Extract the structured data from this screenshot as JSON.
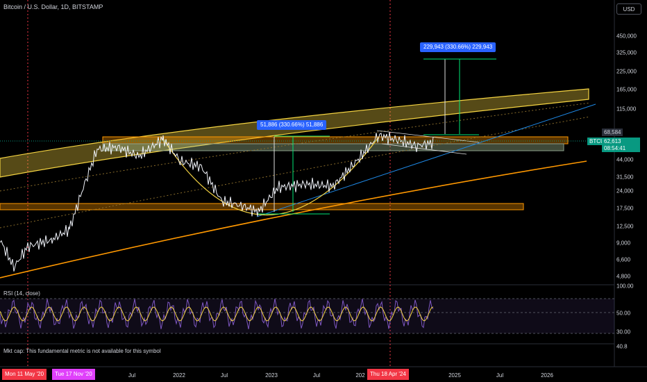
{
  "header": {
    "title": "Bitcoin / U.S. Dollar, 1D, BITSTAMP",
    "currency_button": "USD"
  },
  "price_axis": {
    "labels": [
      "450,000",
      "325,000",
      "225,000",
      "165,000",
      "115,000",
      "44,000",
      "31,500",
      "24,000",
      "17,500",
      "12,500",
      "9,000",
      "6,600",
      "4,800"
    ]
  },
  "price_tags": {
    "marker": "68,584",
    "current": "62,613",
    "countdown": "08:54:41",
    "ticker": "BTCUSD"
  },
  "measurements": [
    {
      "text": "51,886 (330.66%) 51,886"
    },
    {
      "text": "229,943 (330.66%) 229,943"
    }
  ],
  "rsi": {
    "label": "RSI (14, close)",
    "axis_labels": [
      "100.00",
      "50.00",
      "30.00",
      "40.8"
    ]
  },
  "market_cap_note": "Mkt cap: This fundamental metric is not available for this symbol",
  "time_axis": {
    "labels": [
      "Jul",
      "2022",
      "Jul",
      "2023",
      "Jul",
      "202",
      "2025",
      "Jul",
      "2026"
    ],
    "date_badges": [
      "Mon 11 May '20",
      "Tue 17 Nov '20",
      "Thu 18 Apr '24"
    ]
  },
  "colors": {
    "background": "#000000",
    "price_line": "#f0f3fa",
    "channel": "#f5d442",
    "orange": "#ff9800",
    "trend_blue": "#1e88e5",
    "green": "#00e676",
    "rsi_line": "#7e57c2",
    "rsi_ma": "#f5d442",
    "halving_line": "#f23645",
    "badge_red": "#f23645",
    "badge_pink": "#e040fb",
    "ticker_green": "#089981",
    "measure_blue": "#2962ff"
  }
}
